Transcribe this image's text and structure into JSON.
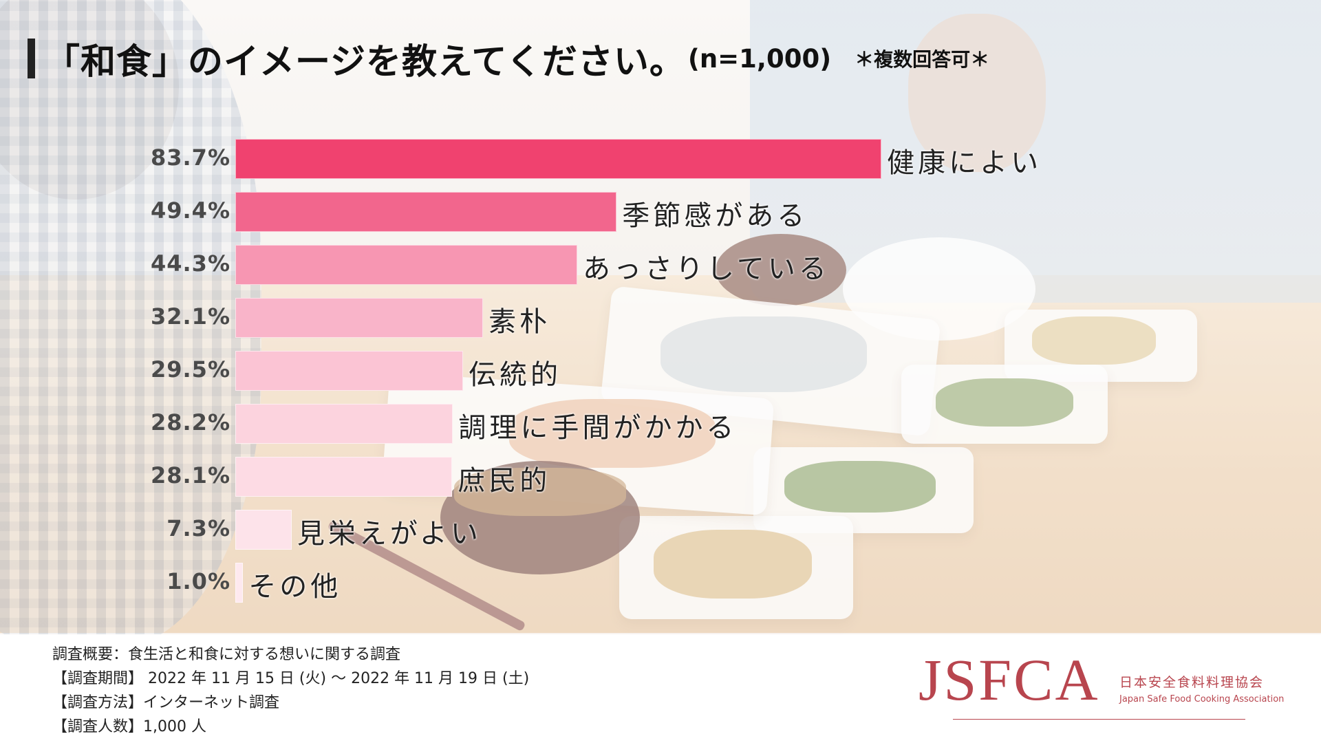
{
  "title": {
    "main": "「和食」のイメージを教えてください。",
    "n": "(n=1,000)",
    "note": "＊複数回答可＊"
  },
  "chart_data": {
    "type": "bar",
    "orientation": "horizontal",
    "categories": [
      "健康によい",
      "季節感がある",
      "あっさりしている",
      "素朴",
      "伝統的",
      "調理に手間がかかる",
      "庶民的",
      "見栄えがよい",
      "その他"
    ],
    "values": [
      83.7,
      49.4,
      44.3,
      32.1,
      29.5,
      28.2,
      28.1,
      7.3,
      1.0
    ],
    "value_labels": [
      "83.7%",
      "49.4%",
      "44.3%",
      "32.1%",
      "29.5%",
      "28.2%",
      "28.1%",
      "7.3%",
      "1.0%"
    ],
    "colors": [
      "#f0426f",
      "#f2668d",
      "#f796b2",
      "#f9b4c9",
      "#fbc4d4",
      "#fcd3de",
      "#fddbe4",
      "#fde3ea",
      "#fee9ef"
    ],
    "xlim": [
      0,
      100
    ],
    "grid": false,
    "legend": "none"
  },
  "survey": {
    "summary": "調査概要：食生活と和食に対する想いに関する調査",
    "period": "【調査期間】 2022 年 11 月 15 日 (火) ～ 2022 年 11 月 19 日 (土)",
    "method": "【調査方法】インターネット調査",
    "count": "【調査人数】1,000 人"
  },
  "logo": {
    "mark": "JSFCA",
    "name_jp": "日本安全食料料理協会",
    "name_en": "Japan Safe Food Cooking Association",
    "color": "#b8454e"
  }
}
